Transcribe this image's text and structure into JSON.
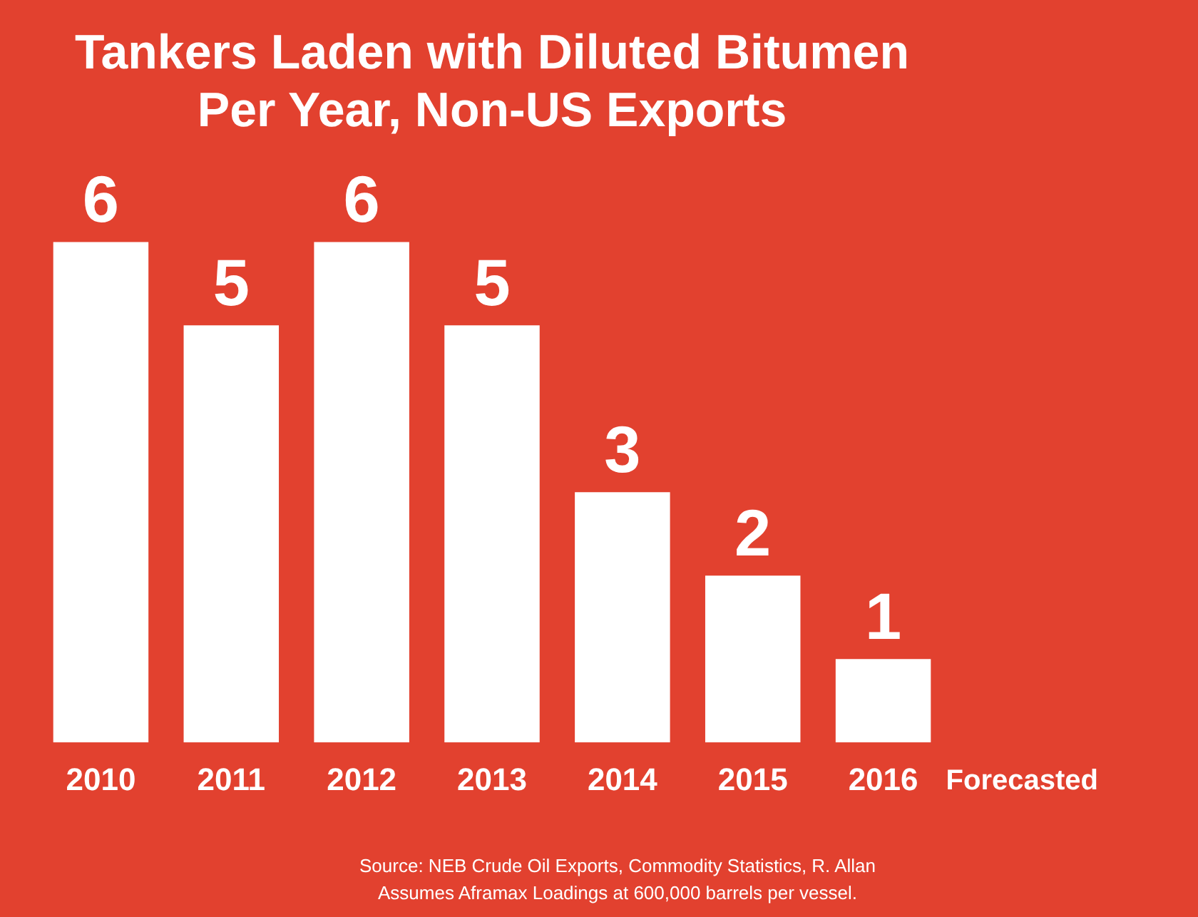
{
  "chart_data": {
    "type": "bar",
    "title": [
      "Tankers Laden with Diluted Bitumen",
      "Per Year, Non-US Exports"
    ],
    "categories": [
      "2010",
      "2011",
      "2012",
      "2013",
      "2014",
      "2015",
      "2016"
    ],
    "values": [
      6,
      5,
      6,
      5,
      3,
      2,
      1
    ],
    "color": "#ffffff",
    "data_labels": true,
    "grid": false,
    "legend": false,
    "annotations": [
      "Forecasted",
      "Source: NEB Crude Oil Exports, Commodity Statistics, R. Allan",
      "Assumes Aframax Loadings at 600,000 barrels per vessel."
    ]
  }
}
